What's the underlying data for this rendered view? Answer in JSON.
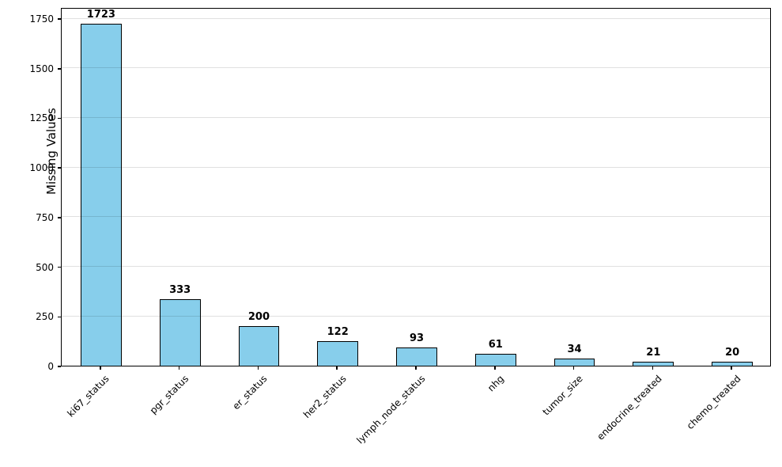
{
  "chart_data": {
    "type": "bar",
    "title": "",
    "categories": [
      "ki67_status",
      "pgr_status",
      "er_status",
      "her2_status",
      "lymph_node_status",
      "nhg",
      "tumor_size",
      "endocrine_treated",
      "chemo_treated"
    ],
    "values": [
      1723,
      333,
      200,
      122,
      93,
      61,
      34,
      21,
      20
    ],
    "xlabel": "",
    "ylabel": "Missing Values",
    "yticks": [
      0,
      250,
      500,
      750,
      1000,
      1250,
      1500,
      1750
    ],
    "ylim": [
      0,
      1806
    ],
    "grid": "horizontal-only",
    "legend_position": "none",
    "bar_color": "#87CEEB",
    "bar_edge_color": "#000000",
    "grid_color": "rgba(0,0,0,0.12)",
    "value_labels_bold": true,
    "x_tick_rotation_deg": 45
  }
}
